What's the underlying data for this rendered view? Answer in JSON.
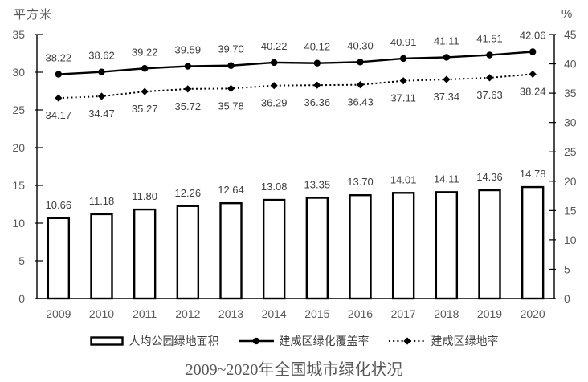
{
  "chart_data": {
    "type": "combo",
    "title": "2009~2020年全国城市绿化状况",
    "categories": [
      "2009",
      "2010",
      "2011",
      "2012",
      "2013",
      "2014",
      "2015",
      "2016",
      "2017",
      "2018",
      "2019",
      "2020"
    ],
    "series": [
      {
        "name": "人均公园绿地面积",
        "kind": "bar",
        "axis": "left",
        "marker": "none",
        "values": [
          "10.66",
          "11.18",
          "11.80",
          "12.26",
          "12.64",
          "13.08",
          "13.35",
          "13.70",
          "14.01",
          "14.11",
          "14.36",
          "14.78"
        ]
      },
      {
        "name": "建成区绿化覆盖率",
        "kind": "line-solid",
        "axis": "right",
        "marker": "circle",
        "values": [
          "38.22",
          "38.62",
          "39.22",
          "39.59",
          "39.70",
          "40.22",
          "40.12",
          "40.30",
          "40.91",
          "41.11",
          "41.51",
          "42.06"
        ]
      },
      {
        "name": "建成区绿地率",
        "kind": "line-dotted",
        "axis": "right",
        "marker": "diamond",
        "values": [
          "34.17",
          "34.47",
          "35.27",
          "35.72",
          "35.78",
          "36.29",
          "36.36",
          "36.43",
          "37.11",
          "37.34",
          "37.63",
          "38.24"
        ]
      }
    ],
    "left_axis": {
      "label": "平方米",
      "min": 0,
      "max": 35,
      "step": 5
    },
    "right_axis": {
      "label": "%",
      "min": 0,
      "max": 45,
      "step": 5
    },
    "legend_position": "bottom",
    "grid": false
  },
  "colors": {
    "series_stroke": "#000000",
    "bar_fill": "#ffffff",
    "data_label": "#3f3f3f",
    "axis_text": "#595959",
    "title_text": "#595959"
  }
}
